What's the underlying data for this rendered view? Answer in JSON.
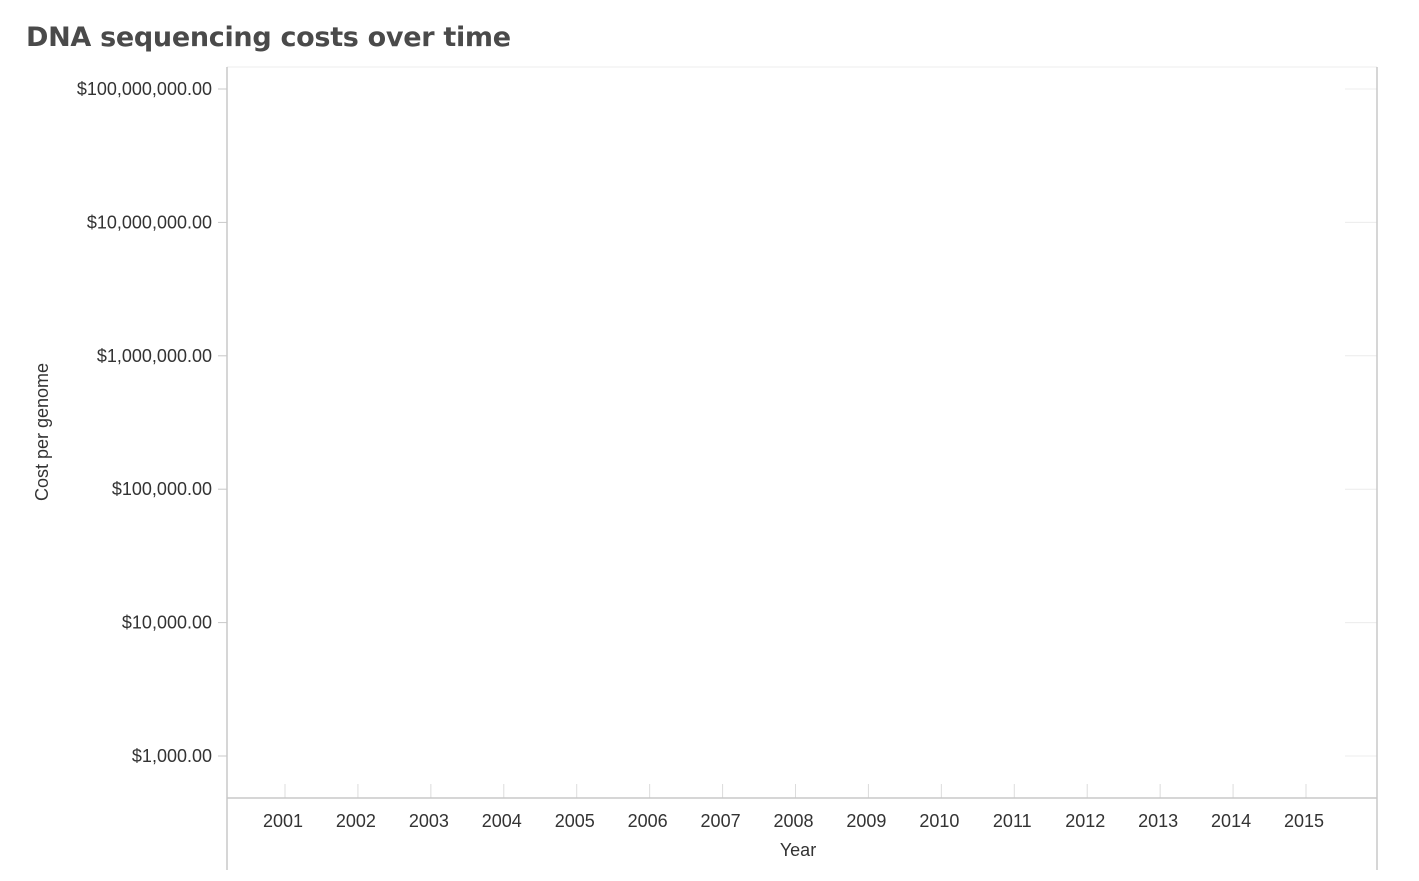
{
  "chart_data": {
    "type": "line",
    "title": "DNA sequencing costs over time",
    "xlabel": "Year",
    "ylabel": "Cost per genome",
    "x_categories": [
      "2001",
      "2002",
      "2003",
      "2004",
      "2005",
      "2006",
      "2007",
      "2008",
      "2009",
      "2010",
      "2011",
      "2012",
      "2013",
      "2014",
      "2015"
    ],
    "y_scale": "log",
    "y_ticks": [
      100000000,
      10000000,
      1000000,
      100000,
      10000,
      1000
    ],
    "y_tick_labels": [
      "$100,000,000.00",
      "$10,000,000.00",
      "$1,000,000.00",
      "$100,000.00",
      "$10,000.00",
      "$1,000.00"
    ],
    "series": [],
    "grid": true,
    "colors": {
      "axis": "#c8c8c8",
      "grid": "#ececec",
      "text": "#333333",
      "title": "#4a4a4a"
    }
  }
}
